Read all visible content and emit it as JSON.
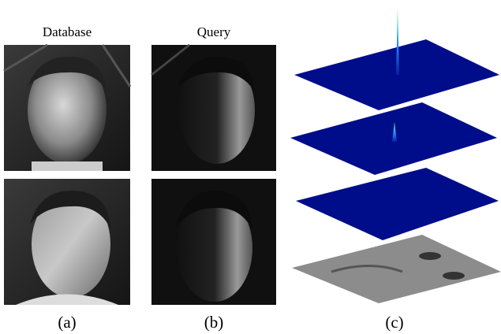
{
  "panels": [
    {
      "title": "Database",
      "label": "(a)"
    },
    {
      "title": "Query",
      "label": "(b)"
    },
    {
      "label": "(c)"
    }
  ]
}
